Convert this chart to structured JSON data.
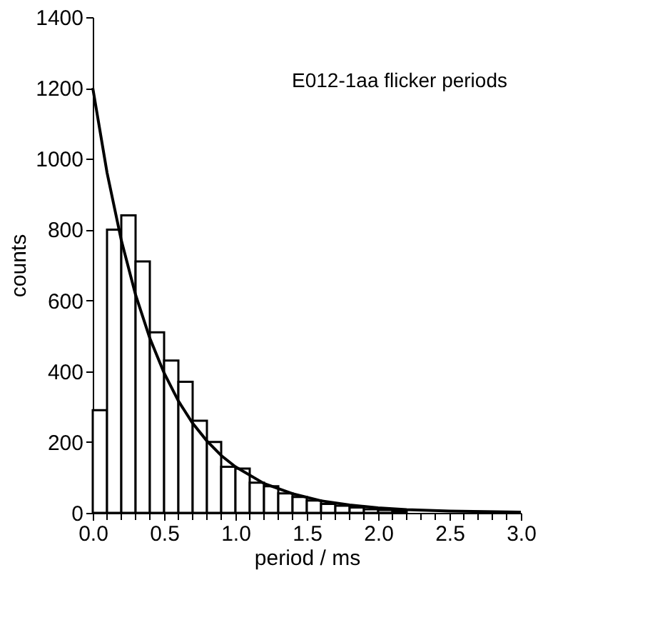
{
  "chart_data": {
    "type": "histogram",
    "xlabel": "period / ms",
    "ylabel": "counts",
    "annotations": [
      "E012-1aa flicker periods"
    ],
    "bins": [
      0,
      0.1,
      0.2,
      0.3,
      0.4,
      0.5,
      0.6,
      0.7,
      0.8,
      0.9,
      1.0,
      1.1,
      1.2,
      1.3,
      1.4,
      1.5,
      1.6,
      1.7,
      1.8,
      1.9,
      2.0,
      2.1,
      2.2,
      2.3,
      2.4,
      2.5,
      2.6,
      2.7,
      2.8,
      2.9,
      3.0
    ],
    "values": [
      290,
      800,
      840,
      710,
      510,
      430,
      370,
      260,
      200,
      130,
      125,
      85,
      75,
      55,
      45,
      35,
      25,
      20,
      15,
      10,
      8,
      5,
      null,
      null,
      null,
      null,
      null,
      1,
      1,
      null
    ],
    "color": "#ffffff",
    "series": [
      {
        "type": "line",
        "color": "#000000",
        "x": [
          0,
          0.1,
          0.2,
          0.3,
          0.4,
          0.5,
          0.6,
          0.7,
          0.8,
          0.9,
          1.0,
          1.2,
          1.4,
          1.6,
          1.8,
          2.0,
          2.2,
          2.5,
          3.0
        ],
        "values": [
          1200,
          961,
          770,
          616,
          493,
          395,
          316,
          253,
          203,
          162,
          130,
          83,
          54,
          34,
          22,
          14,
          9,
          5,
          2
        ]
      }
    ],
    "xlim": [
      0,
      3.0
    ],
    "ylim": [
      0,
      1400
    ],
    "xticks": [
      {
        "value": 0,
        "label": "0.0"
      },
      {
        "value": 0.1,
        "label": null
      },
      {
        "value": 0.2,
        "label": null
      },
      {
        "value": 0.3,
        "label": null
      },
      {
        "value": 0.4,
        "label": null
      },
      {
        "value": 0.5,
        "label": "0.5"
      },
      {
        "value": 0.6,
        "label": null
      },
      {
        "value": 0.7,
        "label": null
      },
      {
        "value": 0.8,
        "label": null
      },
      {
        "value": 0.9,
        "label": null
      },
      {
        "value": 1.0,
        "label": "1.0"
      },
      {
        "value": 1.1,
        "label": null
      },
      {
        "value": 1.2,
        "label": null
      },
      {
        "value": 1.3,
        "label": null
      },
      {
        "value": 1.4,
        "label": null
      },
      {
        "value": 1.5,
        "label": "1.5"
      },
      {
        "value": 1.6,
        "label": null
      },
      {
        "value": 1.7,
        "label": null
      },
      {
        "value": 1.8,
        "label": null
      },
      {
        "value": 1.9,
        "label": null
      },
      {
        "value": 2.0,
        "label": "2.0"
      },
      {
        "value": 2.1,
        "label": null
      },
      {
        "value": 2.2,
        "label": null
      },
      {
        "value": 2.3,
        "label": null
      },
      {
        "value": 2.4,
        "label": null
      },
      {
        "value": 2.5,
        "label": "2.5"
      },
      {
        "value": 2.6,
        "label": null
      },
      {
        "value": 2.7,
        "label": null
      },
      {
        "value": 2.8,
        "label": null
      },
      {
        "value": 2.9,
        "label": null
      },
      {
        "value": 3.0,
        "label": "3.0"
      }
    ],
    "yticks": [
      0,
      200,
      400,
      600,
      800,
      1000,
      1200,
      1400
    ],
    "grid": false,
    "marker": "none",
    "line_style": "solid"
  }
}
